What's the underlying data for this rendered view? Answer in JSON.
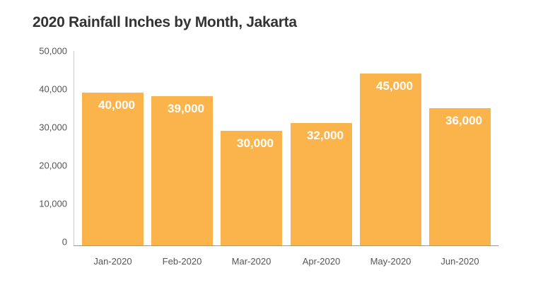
{
  "chart_data": {
    "type": "bar",
    "title": "2020 Rainfall Inches by Month, Jakarta",
    "xlabel": "",
    "ylabel": "",
    "categories": [
      "Jan-2020",
      "Feb-2020",
      "Mar-2020",
      "Apr-2020",
      "May-2020",
      "Jun-2020"
    ],
    "values": [
      40000,
      39000,
      30000,
      32000,
      45000,
      36000
    ],
    "value_labels": [
      "40,000",
      "39,000",
      "30,000",
      "32,000",
      "45,000",
      "36,000"
    ],
    "yticks": [
      "0",
      "10,000",
      "20,000",
      "30,000",
      "40,000",
      "50,000"
    ],
    "ylim": [
      0,
      50000
    ],
    "grid": false,
    "legend": null,
    "bar_color": "#FBB44C"
  }
}
